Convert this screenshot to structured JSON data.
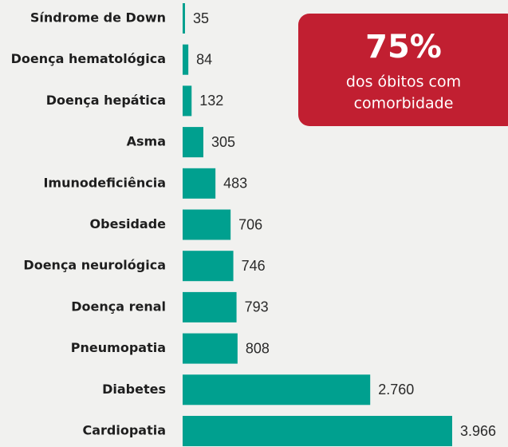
{
  "chart_data": {
    "type": "bar",
    "orientation": "horizontal",
    "categories": [
      "Síndrome de Down",
      "Doença hematológica",
      "Doença hepática",
      "Asma",
      "Imunodeficiência",
      "Obesidade",
      "Doença neurológica",
      "Doença renal",
      "Pneumopatia",
      "Diabetes",
      "Cardiopatia"
    ],
    "values": [
      35,
      84,
      132,
      305,
      483,
      706,
      746,
      793,
      808,
      2760,
      3966
    ],
    "value_labels": [
      "35",
      "84",
      "132",
      "305",
      "483",
      "706",
      "746",
      "793",
      "808",
      "2.760",
      "3.966"
    ],
    "color": "#00a08f",
    "annotation": {
      "headline": "75%",
      "lines": [
        "dos óbitos com",
        "comorbidade"
      ]
    }
  }
}
